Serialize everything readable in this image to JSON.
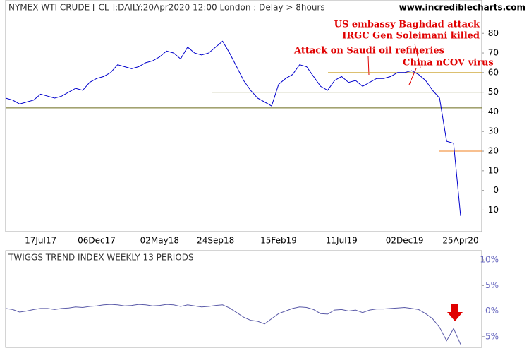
{
  "chart_data": [
    {
      "type": "line",
      "title": "NYMEX WTI CRUDE [ CL ]:DAILY:20Apr2020 12:00 London : Delay > 8hours",
      "source": "www.incrediblecharts.com",
      "categories": [
        null,
        null,
        null,
        null,
        null,
        "17Jul17",
        null,
        null,
        null,
        null,
        null,
        null,
        null,
        "06Dec17",
        null,
        null,
        null,
        null,
        null,
        null,
        null,
        null,
        "02May18",
        null,
        null,
        null,
        null,
        null,
        null,
        null,
        "24Sep18",
        null,
        null,
        null,
        null,
        null,
        null,
        null,
        null,
        "15Feb19",
        null,
        null,
        null,
        null,
        null,
        null,
        null,
        null,
        "11Jul19",
        null,
        null,
        null,
        null,
        null,
        null,
        null,
        null,
        "02Dec19",
        null,
        null,
        null,
        null,
        null,
        null,
        null,
        "25Apr20"
      ],
      "series": [
        {
          "name": "WTI Crude",
          "color": "#0000cc",
          "values": [
            47,
            46,
            44,
            45,
            46,
            49,
            48,
            47,
            48,
            50,
            52,
            51,
            55,
            57,
            58,
            60,
            64,
            63,
            62,
            63,
            65,
            66,
            68,
            71,
            70,
            67,
            73,
            70,
            69,
            70,
            73,
            76,
            70,
            63,
            56,
            51,
            47,
            45,
            43,
            54,
            57,
            59,
            64,
            63,
            58,
            53,
            51,
            56,
            58,
            55,
            56,
            53,
            55,
            57,
            57,
            58,
            60,
            60,
            61,
            59,
            56,
            51,
            47,
            25,
            24,
            -13
          ]
        }
      ],
      "levels": [
        {
          "value": 42,
          "color": "#6b6b1a"
        },
        {
          "value": 50,
          "color": "#6b6b1a"
        },
        {
          "value": 60,
          "color": "#c89a1a"
        },
        {
          "value": 20,
          "color": "#f08020"
        }
      ],
      "annotations": [
        "US embassy Baghdad attack",
        "IRGC Gen Soleimani killed",
        "Attack on Saudi oil refineries",
        "China nCOV virus"
      ],
      "ylim": [
        -21,
        97
      ],
      "yticks": [
        -10,
        0,
        10,
        20,
        30,
        40,
        50,
        60,
        70,
        80
      ]
    },
    {
      "type": "line",
      "title": "TWIGGS TREND INDEX WEEKLY 13 PERIODS",
      "series": [
        {
          "name": "Twiggs Trend Index",
          "color": "#5a5aa8",
          "values": [
            0.5,
            0.3,
            -0.2,
            0,
            0.3,
            0.5,
            0.5,
            0.3,
            0.5,
            0.6,
            0.8,
            0.7,
            0.9,
            1,
            1.2,
            1.3,
            1.2,
            1,
            1.1,
            1.3,
            1.2,
            1,
            1.1,
            1.3,
            1.2,
            0.9,
            1.2,
            1.0,
            0.8,
            0.9,
            1.1,
            1.2,
            0.6,
            -0.3,
            -1.2,
            -1.8,
            -2,
            -2.5,
            -1.5,
            -0.5,
            0,
            0.5,
            0.8,
            0.7,
            0.3,
            -0.5,
            -0.6,
            0.2,
            0.3,
            0,
            0.2,
            -0.3,
            0.2,
            0.4,
            0.4,
            0.5,
            0.6,
            0.7,
            0.5,
            0.3,
            -0.5,
            -1.5,
            -3.2,
            -5.8,
            -3.4,
            -6.5
          ]
        }
      ],
      "reference_line": 0,
      "ylim": [
        -7.1,
        11.8
      ],
      "yticks": [
        {
          "value": -5,
          "label": "-5%"
        },
        {
          "value": 0,
          "label": "0%"
        },
        {
          "value": 5,
          "label": "5%"
        },
        {
          "value": 10,
          "label": "10%"
        }
      ]
    }
  ]
}
